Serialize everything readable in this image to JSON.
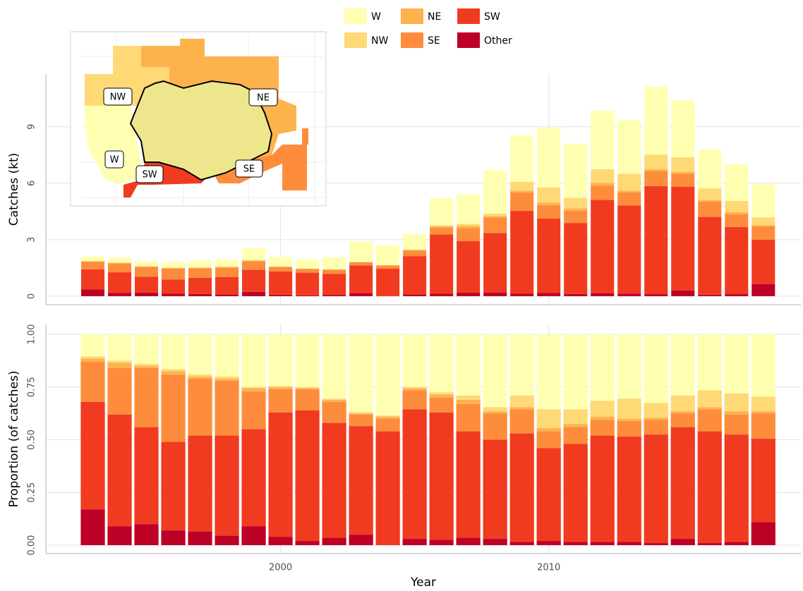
{
  "chart_data": [
    {
      "type": "stacked-bar",
      "y_label": "Catches (kt)",
      "x": [
        1993,
        1994,
        1995,
        1996,
        1997,
        1998,
        1999,
        2000,
        2001,
        2002,
        2003,
        2004,
        2005,
        2006,
        2007,
        2008,
        2009,
        2010,
        2011,
        2012,
        2013,
        2014,
        2015,
        2016,
        2017,
        2018
      ],
      "xlim": [
        1991.25,
        2019.4
      ],
      "xticks": [
        2000,
        2010
      ],
      "ylim": [
        -0.45,
        11.8
      ],
      "yticks": [
        0,
        3,
        6,
        9
      ],
      "grid": true,
      "series": [
        {
          "name": "W",
          "color": "#ffffb2",
          "values": [
            0.22,
            0.26,
            0.26,
            0.3,
            0.36,
            0.39,
            0.64,
            0.51,
            0.49,
            0.63,
            1.07,
            1.04,
            0.83,
            1.43,
            1.57,
            2.31,
            2.48,
            3.18,
            2.88,
            3.1,
            2.85,
            3.62,
            3.02,
            2.07,
            1.96,
            1.76
          ]
        },
        {
          "name": "NW",
          "color": "#fed976",
          "values": [
            0.02,
            0.02,
            0.02,
            0.02,
            0.02,
            0.02,
            0.01,
            0.01,
            0.01,
            0.01,
            0.01,
            0.01,
            0.02,
            0.05,
            0.11,
            0.13,
            0.47,
            0.81,
            0.57,
            0.74,
            0.89,
            0.78,
            0.78,
            0.62,
            0.6,
            0.42
          ]
        },
        {
          "name": "NE",
          "color": "#feb24c",
          "values": [
            0.03,
            0.05,
            0.02,
            0.03,
            0.02,
            0.02,
            0.04,
            0.02,
            0.01,
            0.02,
            0.01,
            0.03,
            0.03,
            0.08,
            0.11,
            0.07,
            0.09,
            0.13,
            0.12,
            0.15,
            0.09,
            0.11,
            0.1,
            0.08,
            0.11,
            0.06
          ]
        },
        {
          "name": "SE",
          "color": "#fd8d3c",
          "values": [
            0.4,
            0.45,
            0.52,
            0.58,
            0.51,
            0.51,
            0.46,
            0.23,
            0.2,
            0.21,
            0.16,
            0.16,
            0.3,
            0.36,
            0.7,
            0.84,
            0.98,
            0.72,
            0.65,
            0.74,
            0.7,
            0.78,
            0.68,
            0.82,
            0.67,
            0.71
          ]
        },
        {
          "name": "SW",
          "color": "#f03b20",
          "values": [
            1.07,
            1.09,
            0.85,
            0.76,
            0.86,
            0.93,
            1.17,
            1.24,
            1.21,
            1.12,
            1.49,
            1.46,
            2.03,
            3.15,
            2.73,
            3.15,
            4.4,
            3.94,
            3.77,
            4.97,
            4.68,
            5.74,
            5.51,
            4.13,
            3.57,
            2.35
          ]
        },
        {
          "name": "Other",
          "color": "#bd0026",
          "values": [
            0.36,
            0.18,
            0.19,
            0.13,
            0.12,
            0.09,
            0.23,
            0.08,
            0.04,
            0.07,
            0.15,
            0,
            0.1,
            0.13,
            0.19,
            0.2,
            0.13,
            0.18,
            0.12,
            0.15,
            0.14,
            0.11,
            0.31,
            0.08,
            0.11,
            0.65
          ]
        }
      ]
    },
    {
      "type": "stacked-bar",
      "y_label": "Proportion (of catches)",
      "x_label": "Year",
      "x": [
        1993,
        1994,
        1995,
        1996,
        1997,
        1998,
        1999,
        2000,
        2001,
        2002,
        2003,
        2004,
        2005,
        2006,
        2007,
        2008,
        2009,
        2010,
        2011,
        2012,
        2013,
        2014,
        2015,
        2016,
        2017,
        2018
      ],
      "xlim": [
        1991.25,
        2019.4
      ],
      "xticks": [
        2000,
        2010
      ],
      "ylim": [
        -0.04,
        1.047
      ],
      "yticks": [
        {
          "value": 0,
          "label": "0.00"
        },
        {
          "value": 0.25,
          "label": "0.25"
        },
        {
          "value": 0.5,
          "label": "0.50"
        },
        {
          "value": 0.75,
          "label": "0.75"
        },
        {
          "value": 1,
          "label": "1.00"
        }
      ],
      "grid": true,
      "series": [
        {
          "name": "W",
          "color": "#ffffb2",
          "values": [
            0.105,
            0.125,
            0.14,
            0.165,
            0.19,
            0.2,
            0.25,
            0.245,
            0.25,
            0.305,
            0.37,
            0.385,
            0.25,
            0.275,
            0.29,
            0.345,
            0.29,
            0.355,
            0.355,
            0.315,
            0.305,
            0.325,
            0.29,
            0.265,
            0.28,
            0.295
          ]
        },
        {
          "name": "NW",
          "color": "#fed976",
          "values": [
            0.01,
            0.01,
            0.01,
            0.01,
            0.01,
            0.01,
            0.005,
            0.005,
            0.005,
            0.005,
            0.005,
            0.005,
            0.005,
            0.01,
            0.02,
            0.02,
            0.055,
            0.09,
            0.07,
            0.075,
            0.095,
            0.07,
            0.075,
            0.08,
            0.085,
            0.07
          ]
        },
        {
          "name": "NE",
          "color": "#feb24c",
          "values": [
            0.015,
            0.025,
            0.01,
            0.015,
            0.01,
            0.01,
            0.015,
            0.01,
            0.005,
            0.01,
            0.005,
            0.01,
            0.01,
            0.015,
            0.02,
            0.01,
            0.01,
            0.015,
            0.015,
            0.015,
            0.01,
            0.01,
            0.01,
            0.01,
            0.015,
            0.01
          ]
        },
        {
          "name": "SE",
          "color": "#fd8d3c",
          "values": [
            0.19,
            0.22,
            0.28,
            0.32,
            0.27,
            0.26,
            0.18,
            0.11,
            0.1,
            0.1,
            0.055,
            0.06,
            0.09,
            0.07,
            0.13,
            0.125,
            0.115,
            0.08,
            0.08,
            0.075,
            0.075,
            0.07,
            0.065,
            0.105,
            0.095,
            0.12
          ]
        },
        {
          "name": "SW",
          "color": "#f03b20",
          "values": [
            0.51,
            0.53,
            0.46,
            0.42,
            0.455,
            0.475,
            0.46,
            0.59,
            0.62,
            0.545,
            0.515,
            0.54,
            0.615,
            0.605,
            0.505,
            0.47,
            0.515,
            0.44,
            0.465,
            0.505,
            0.5,
            0.515,
            0.53,
            0.53,
            0.51,
            0.395
          ]
        },
        {
          "name": "Other",
          "color": "#bd0026",
          "values": [
            0.17,
            0.09,
            0.1,
            0.07,
            0.065,
            0.045,
            0.09,
            0.04,
            0.02,
            0.035,
            0.05,
            0,
            0.03,
            0.025,
            0.035,
            0.03,
            0.015,
            0.02,
            0.015,
            0.015,
            0.015,
            0.01,
            0.03,
            0.01,
            0.015,
            0.11
          ]
        }
      ]
    }
  ],
  "inset_map": {
    "labels": [
      "NW",
      "NE",
      "W",
      "SW",
      "SE"
    ]
  }
}
